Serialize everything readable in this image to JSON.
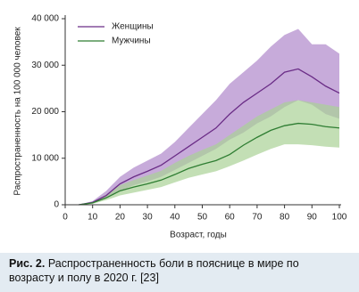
{
  "chart_data": {
    "type": "line",
    "x_label": "Возраст, годы",
    "y_label": "Распространенность на 100 000 человек",
    "x": [
      5,
      10,
      15,
      20,
      25,
      30,
      35,
      40,
      45,
      50,
      55,
      60,
      65,
      70,
      75,
      80,
      85,
      90,
      95,
      100
    ],
    "series": [
      {
        "name": "Женщины",
        "color": "#6a2c86",
        "band_color": "#b48fcd",
        "values": [
          0,
          500,
          2000,
          4500,
          6000,
          7200,
          8500,
          10500,
          12500,
          14500,
          16500,
          19500,
          22000,
          24000,
          26000,
          28500,
          29200,
          27500,
          25500,
          24000
        ],
        "upper": [
          0,
          800,
          3000,
          6000,
          8000,
          9500,
          11000,
          13500,
          16500,
          19500,
          22500,
          26000,
          28500,
          31000,
          34000,
          36500,
          37800,
          34500,
          34500,
          32500
        ],
        "lower": [
          0,
          300,
          1500,
          3000,
          4200,
          5000,
          6000,
          7500,
          9000,
          10500,
          12000,
          14000,
          15500,
          17500,
          19000,
          21000,
          22500,
          21500,
          19500,
          18500
        ]
      },
      {
        "name": "Мужчины",
        "color": "#2e7d32",
        "band_color": "#a9d196",
        "values": [
          0,
          400,
          1500,
          3000,
          3800,
          4500,
          5300,
          6500,
          7800,
          8700,
          9500,
          10800,
          12800,
          14500,
          16000,
          17000,
          17500,
          17300,
          16800,
          16500
        ],
        "upper": [
          0,
          600,
          2200,
          4200,
          5300,
          6300,
          7300,
          9000,
          10500,
          11800,
          13000,
          15000,
          17000,
          19000,
          20500,
          22000,
          22500,
          22000,
          21500,
          21000
        ],
        "lower": [
          0,
          200,
          1000,
          2000,
          2600,
          3200,
          3800,
          4800,
          5800,
          6500,
          7200,
          8300,
          9500,
          10800,
          12000,
          13000,
          13000,
          12800,
          12500,
          12300
        ]
      }
    ],
    "xlim": [
      0,
      100
    ],
    "xticks": [
      0,
      10,
      20,
      30,
      40,
      50,
      60,
      70,
      80,
      90,
      100
    ],
    "ylim": [
      0,
      40000
    ],
    "yticks": [
      {
        "value": 0,
        "label": "0"
      },
      {
        "value": 10000,
        "label": "10 000"
      },
      {
        "value": 20000,
        "label": "20 000"
      },
      {
        "value": 30000,
        "label": "30 000"
      },
      {
        "value": 40000,
        "label": "40 000"
      }
    ],
    "legend": "upper-left"
  },
  "caption": {
    "label": "Рис. 2.",
    "text": "Распространенность боли в пояснице в мире по возрасту и полу в 2020 г. [23]"
  }
}
